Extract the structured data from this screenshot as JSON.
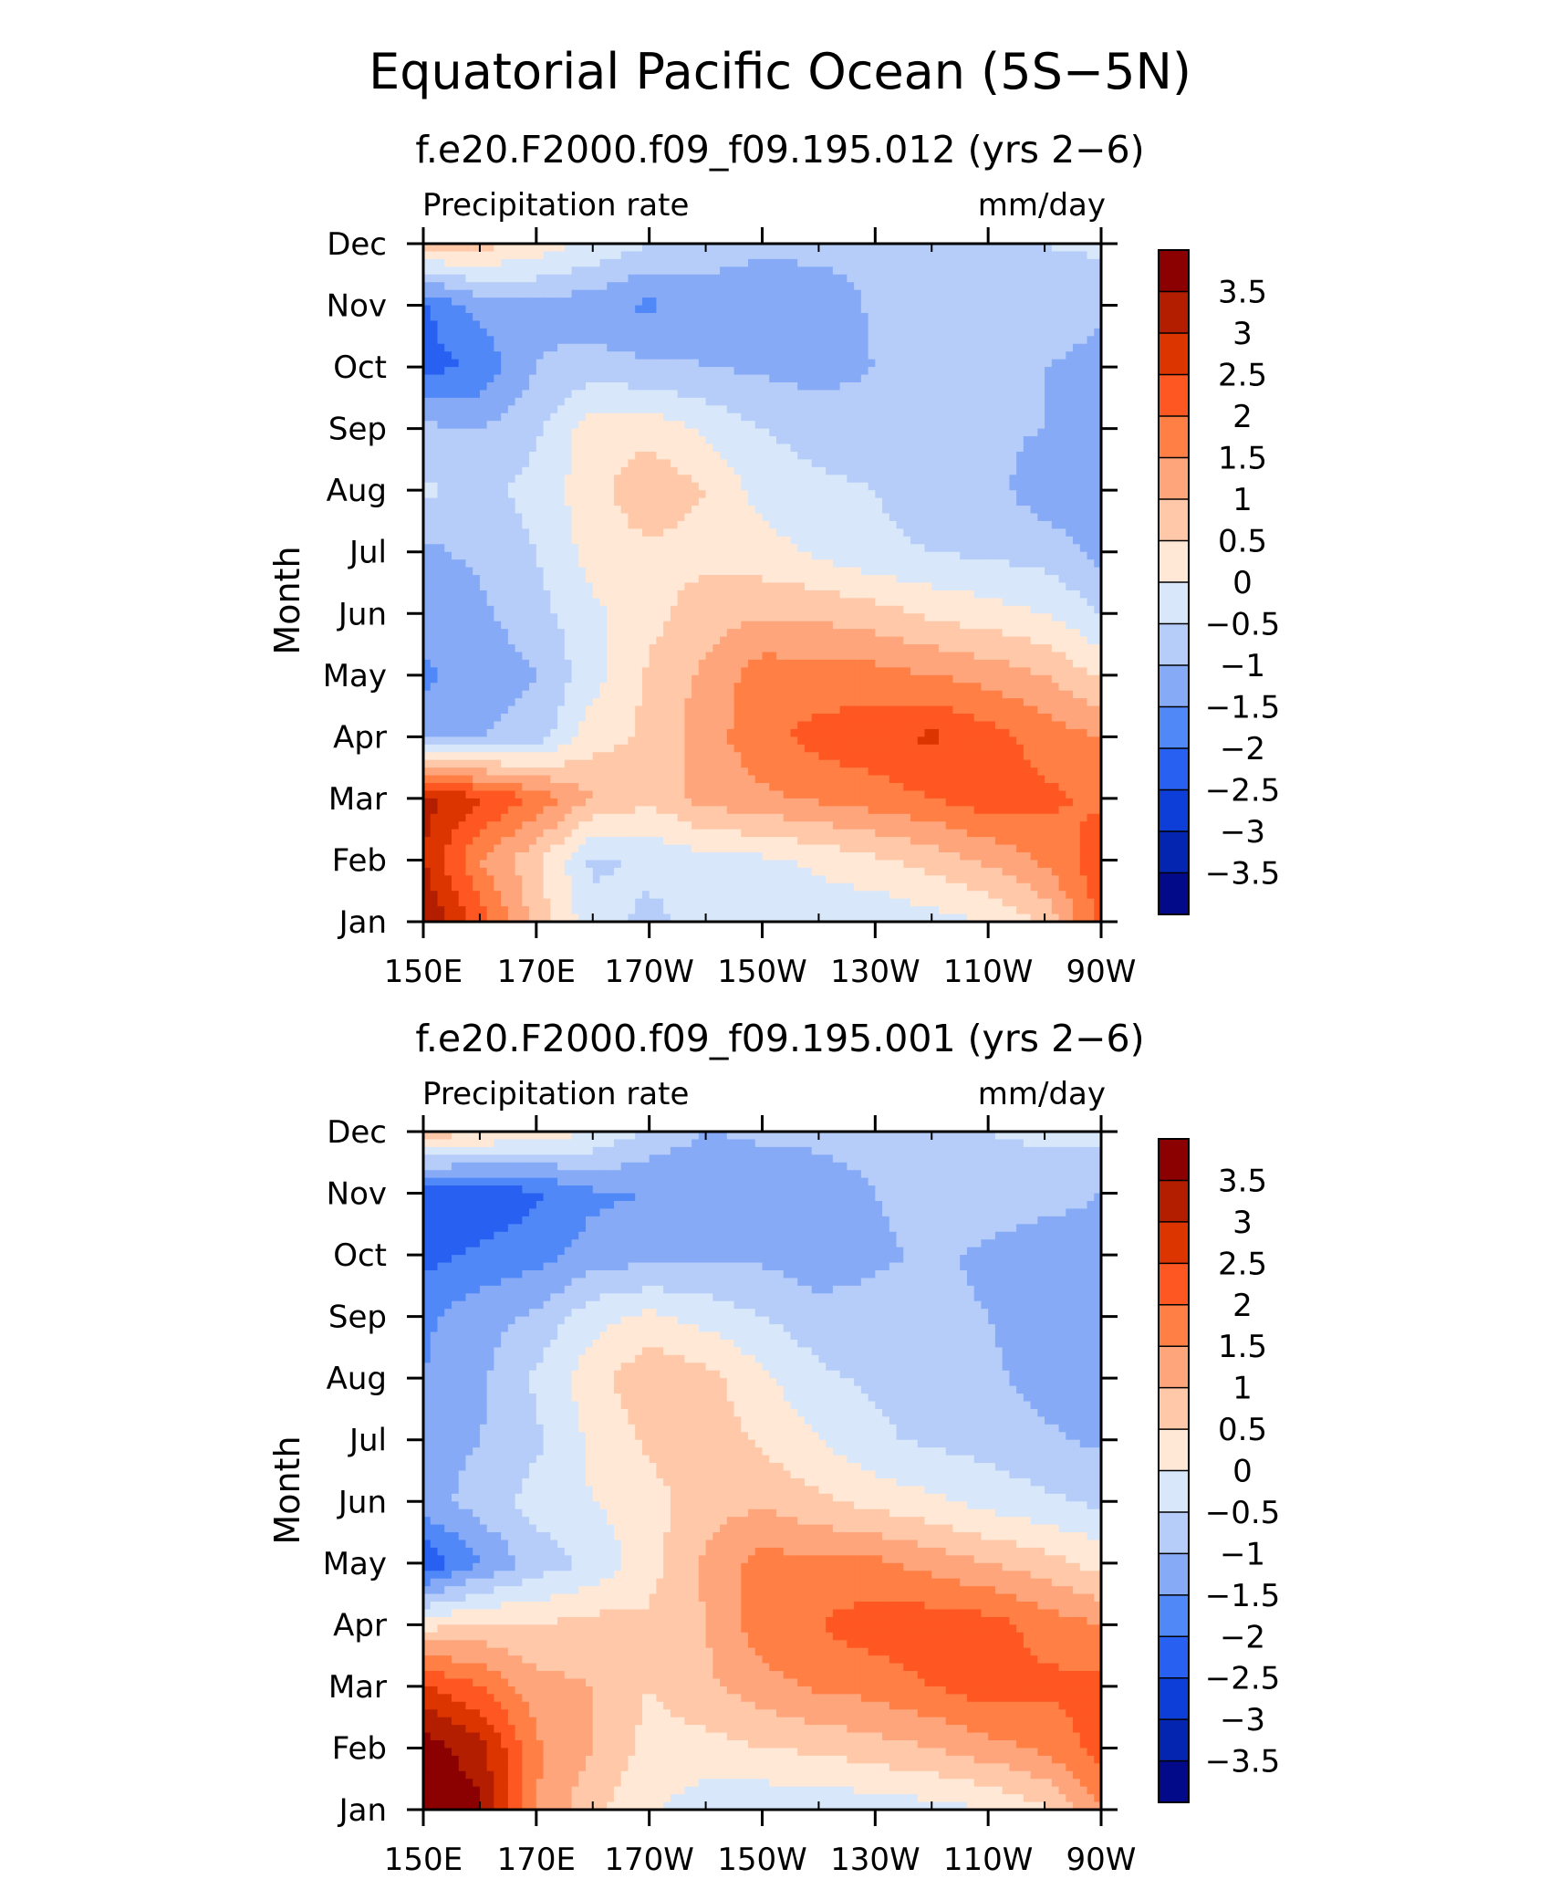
{
  "figure": {
    "title": "Equatorial Pacific Ocean (5S−5N)"
  },
  "colorbar": {
    "labels": [
      "3.5",
      "3",
      "2.5",
      "2",
      "1.5",
      "1",
      "0.5",
      "0",
      "−0.5",
      "−1",
      "−1.5",
      "−2",
      "−2.5",
      "−3",
      "−3.5"
    ],
    "colors": [
      "#8b0000",
      "#b41e00",
      "#dc3500",
      "#ff5722",
      "#ff7f45",
      "#ffa57c",
      "#ffc8a8",
      "#ffe8d6",
      "#d8e8fa",
      "#b5cdf8",
      "#87aaf7",
      "#5088f8",
      "#2860f2",
      "#0d3fd8",
      "#0325b0",
      "#020a8a"
    ]
  },
  "chart_data": [
    {
      "type": "heatmap",
      "title": "f.e20.F2000.f09_f09.195.012 (yrs 2−6)",
      "left_label": "Precipitation rate",
      "right_label": "mm/day",
      "ylabel": "Month",
      "x_ticks": [
        "150E",
        "170E",
        "170W",
        "150W",
        "130W",
        "110W",
        "90W"
      ],
      "y_ticks": [
        "Jan",
        "Feb",
        "Mar",
        "Apr",
        "May",
        "Jun",
        "Jul",
        "Aug",
        "Sep",
        "Oct",
        "Nov",
        "Dec"
      ],
      "x_range": [
        150,
        270
      ],
      "levels": [
        -3.5,
        -3,
        -2.5,
        -2,
        -1.5,
        -1,
        -0.5,
        0,
        0.5,
        1,
        1.5,
        2,
        2.5,
        3,
        3.5
      ],
      "x_nodes": [
        150,
        160,
        170,
        180,
        190,
        200,
        210,
        220,
        230,
        240,
        250,
        260,
        270
      ],
      "values": [
        [
          3.6,
          2.3,
          0.8,
          -0.3,
          -0.6,
          -0.4,
          -0.2,
          -0.3,
          -0.4,
          -0.2,
          0.0,
          0.6,
          2.2
        ],
        [
          3.0,
          1.5,
          0.6,
          -0.6,
          -0.4,
          -0.2,
          -0.1,
          0.1,
          0.4,
          0.7,
          1.1,
          1.6,
          2.3
        ],
        [
          3.2,
          2.6,
          1.9,
          1.0,
          0.6,
          1.2,
          1.4,
          1.6,
          1.8,
          2.0,
          2.3,
          2.1,
          1.9
        ],
        [
          -1.2,
          -1.0,
          -0.8,
          0.3,
          0.6,
          1.3,
          1.8,
          2.2,
          2.3,
          2.6,
          2.2,
          1.8,
          1.5
        ],
        [
          -1.6,
          -1.3,
          -1.0,
          -0.2,
          0.6,
          1.1,
          1.8,
          1.7,
          1.7,
          1.5,
          1.3,
          1.0,
          0.4
        ],
        [
          -1.3,
          -1.1,
          -0.7,
          -0.1,
          0.3,
          0.8,
          0.9,
          0.9,
          0.7,
          0.4,
          0.2,
          0.0,
          -0.5
        ],
        [
          -1.1,
          -0.9,
          -0.5,
          0.2,
          0.4,
          0.3,
          0.2,
          -0.1,
          -0.4,
          -0.5,
          -0.6,
          -0.7,
          -1.2
        ],
        [
          -0.4,
          -0.7,
          -0.3,
          0.3,
          0.9,
          0.5,
          -0.2,
          -0.4,
          -0.5,
          -0.7,
          -0.8,
          -1.3,
          -1.2
        ],
        [
          -0.9,
          -1.0,
          -0.6,
          0.3,
          0.3,
          -0.1,
          -0.5,
          -0.7,
          -0.8,
          -0.9,
          -0.9,
          -1.0,
          -1.1
        ],
        [
          -2.2,
          -1.9,
          -1.0,
          -0.8,
          -0.9,
          -1.0,
          -1.1,
          -1.2,
          -1.0,
          -0.9,
          -0.8,
          -1.0,
          -1.2
        ],
        [
          -2.1,
          -1.3,
          -1.1,
          -1.3,
          -1.6,
          -1.2,
          -1.3,
          -1.4,
          -0.9,
          -0.8,
          -0.7,
          -0.6,
          -0.9
        ],
        [
          0.9,
          0.7,
          0.3,
          -0.1,
          -0.5,
          -0.8,
          -0.9,
          -0.8,
          -0.8,
          -0.7,
          -0.6,
          -0.5,
          -0.4
        ]
      ]
    },
    {
      "type": "heatmap",
      "title": "f.e20.F2000.f09_f09.195.001 (yrs 2−6)",
      "left_label": "Precipitation rate",
      "right_label": "mm/day",
      "ylabel": "Month",
      "x_ticks": [
        "150E",
        "170E",
        "170W",
        "150W",
        "130W",
        "110W",
        "90W"
      ],
      "y_ticks": [
        "Jan",
        "Feb",
        "Mar",
        "Apr",
        "May",
        "Jun",
        "Jul",
        "Aug",
        "Sep",
        "Oct",
        "Nov",
        "Dec"
      ],
      "x_range": [
        150,
        270
      ],
      "levels": [
        -3.5,
        -3,
        -2.5,
        -2,
        -1.5,
        -1,
        -0.5,
        0,
        0.5,
        1,
        1.5,
        2,
        2.5,
        3,
        3.5
      ],
      "x_nodes": [
        150,
        160,
        170,
        180,
        190,
        200,
        210,
        220,
        230,
        240,
        250,
        260,
        270
      ],
      "values": [
        [
          4.0,
          3.6,
          1.5,
          0.6,
          0.1,
          -0.3,
          -0.4,
          -0.4,
          -0.3,
          -0.2,
          0.0,
          0.4,
          1.5
        ],
        [
          3.8,
          3.2,
          1.6,
          1.0,
          0.3,
          0.3,
          0.5,
          0.6,
          0.8,
          1.0,
          1.3,
          1.6,
          2.2
        ],
        [
          2.6,
          2.0,
          1.2,
          1.0,
          0.5,
          0.9,
          1.3,
          1.6,
          1.7,
          2.0,
          2.3,
          2.1,
          2.2
        ],
        [
          0.3,
          0.6,
          0.5,
          0.7,
          0.6,
          1.0,
          1.8,
          2.0,
          2.3,
          2.3,
          2.2,
          1.8,
          1.5
        ],
        [
          -2.5,
          -1.5,
          -0.8,
          -0.4,
          0.3,
          1.1,
          1.7,
          1.6,
          1.6,
          1.3,
          1.0,
          0.7,
          0.3
        ],
        [
          -1.2,
          -0.8,
          -0.3,
          0.0,
          0.3,
          0.8,
          0.9,
          0.6,
          0.3,
          0.1,
          -0.2,
          -0.4,
          -0.6
        ],
        [
          -1.3,
          -1.0,
          -0.6,
          0.1,
          0.6,
          0.8,
          0.4,
          0.0,
          -0.4,
          -0.6,
          -0.7,
          -0.9,
          -1.1
        ],
        [
          -1.5,
          -1.1,
          -0.4,
          0.3,
          0.9,
          0.7,
          0.1,
          -0.4,
          -0.6,
          -0.8,
          -0.9,
          -1.2,
          -1.2
        ],
        [
          -1.6,
          -1.2,
          -0.9,
          -0.2,
          0.1,
          -0.2,
          -0.5,
          -0.8,
          -0.8,
          -0.9,
          -1.0,
          -1.2,
          -1.3
        ],
        [
          -2.2,
          -1.9,
          -1.7,
          -1.3,
          -1.2,
          -1.1,
          -1.1,
          -1.3,
          -1.1,
          -0.9,
          -1.1,
          -1.3,
          -1.2
        ],
        [
          -2.2,
          -2.4,
          -2.1,
          -1.6,
          -1.5,
          -1.5,
          -1.4,
          -1.4,
          -1.0,
          -0.8,
          -0.7,
          -0.8,
          -1.0
        ],
        [
          0.8,
          0.6,
          0.3,
          0.0,
          -0.6,
          -1.0,
          -0.9,
          -0.8,
          -0.7,
          -0.6,
          -0.5,
          -0.4,
          -0.3
        ]
      ]
    }
  ]
}
